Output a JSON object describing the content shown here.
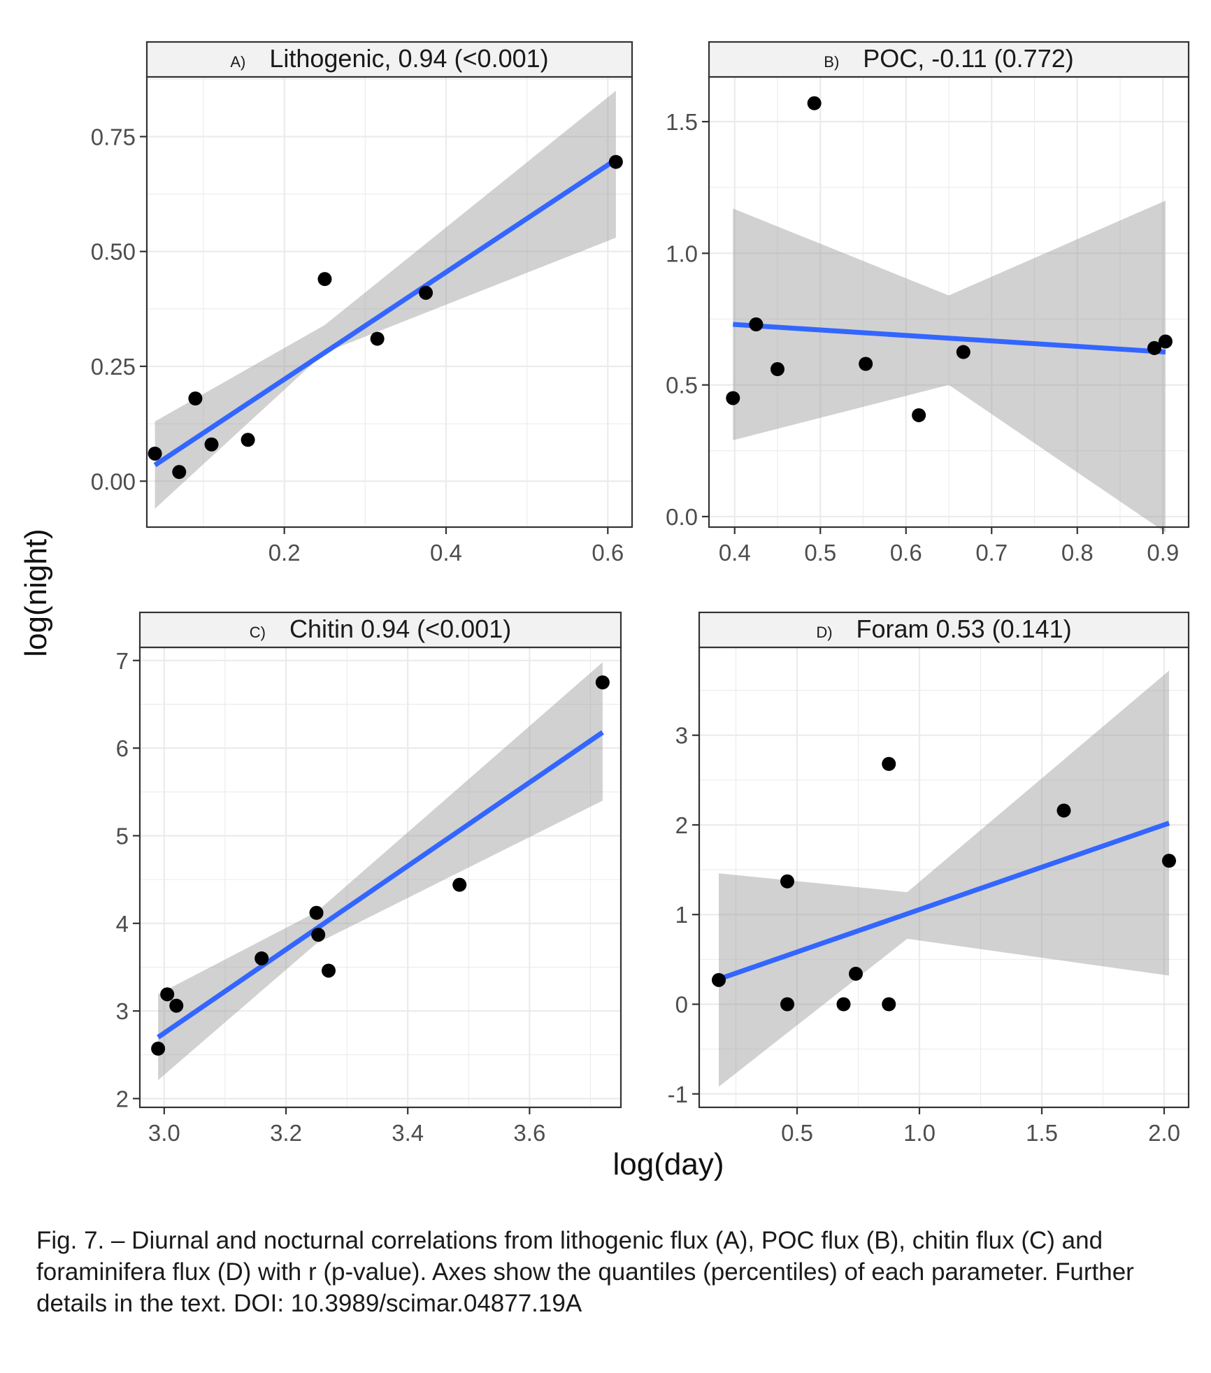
{
  "figure": {
    "xlabel": "log(day)",
    "ylabel": "log(night)",
    "caption": "Fig. 7. – Diurnal and nocturnal correlations from lithogenic flux (A), POC flux (B), chitin flux (C) and foraminifera flux (D) with r (p-value). Axes show the quantiles (percentiles) of each parameter. Further details in the text. DOI: 10.3989/scimar.04877.19A"
  },
  "chart_data": [
    {
      "type": "scatter",
      "panel": "A)",
      "title": "Lithogenic, 0.94 (<0.001)",
      "xlim": [
        0.03,
        0.63
      ],
      "ylim": [
        -0.1,
        0.88
      ],
      "xticks": [
        0.2,
        0.4,
        0.6
      ],
      "xtick_labels": [
        "0.2",
        "0.4",
        "0.6"
      ],
      "yticks": [
        0.0,
        0.25,
        0.5,
        0.75
      ],
      "ytick_labels": [
        "0.00",
        "0.25",
        "0.50",
        "0.75"
      ],
      "grid": true,
      "points": [
        {
          "x": 0.04,
          "y": 0.06
        },
        {
          "x": 0.07,
          "y": 0.02
        },
        {
          "x": 0.09,
          "y": 0.18
        },
        {
          "x": 0.11,
          "y": 0.08
        },
        {
          "x": 0.155,
          "y": 0.09
        },
        {
          "x": 0.25,
          "y": 0.44
        },
        {
          "x": 0.315,
          "y": 0.31
        },
        {
          "x": 0.375,
          "y": 0.41
        },
        {
          "x": 0.61,
          "y": 0.695
        }
      ],
      "fit": {
        "x": [
          0.04,
          0.61
        ],
        "y": [
          0.035,
          0.7
        ]
      },
      "ci": {
        "x": [
          0.04,
          0.25,
          0.61
        ],
        "lower": [
          -0.06,
          0.28,
          0.53
        ],
        "upper": [
          0.13,
          0.34,
          0.85
        ]
      }
    },
    {
      "type": "scatter",
      "panel": "B)",
      "title": "POC, -0.11 (0.772)",
      "xlim": [
        0.37,
        0.93
      ],
      "ylim": [
        -0.04,
        1.67
      ],
      "xticks": [
        0.4,
        0.5,
        0.6,
        0.7,
        0.8,
        0.9
      ],
      "xtick_labels": [
        "0.4",
        "0.5",
        "0.6",
        "0.7",
        "0.8",
        "0.9"
      ],
      "yticks": [
        0.0,
        0.5,
        1.0,
        1.5
      ],
      "ytick_labels": [
        "0.0",
        "0.5",
        "1.0",
        "1.5"
      ],
      "grid": true,
      "points": [
        {
          "x": 0.398,
          "y": 0.45
        },
        {
          "x": 0.425,
          "y": 0.73
        },
        {
          "x": 0.45,
          "y": 0.56
        },
        {
          "x": 0.493,
          "y": 1.57
        },
        {
          "x": 0.553,
          "y": 0.58
        },
        {
          "x": 0.615,
          "y": 0.385
        },
        {
          "x": 0.667,
          "y": 0.625
        },
        {
          "x": 0.89,
          "y": 0.64
        },
        {
          "x": 0.903,
          "y": 0.665
        }
      ],
      "fit": {
        "x": [
          0.398,
          0.903
        ],
        "y": [
          0.73,
          0.625
        ]
      },
      "ci": {
        "x": [
          0.398,
          0.65,
          0.903
        ],
        "lower": [
          0.29,
          0.5,
          -0.06
        ],
        "upper": [
          1.17,
          0.84,
          1.2
        ]
      }
    },
    {
      "type": "scatter",
      "panel": "C)",
      "title": "Chitin 0.94 (<0.001)",
      "xlim": [
        2.96,
        3.75
      ],
      "ylim": [
        1.9,
        7.15
      ],
      "xticks": [
        3.0,
        3.2,
        3.4,
        3.6
      ],
      "xtick_labels": [
        "3.0",
        "3.2",
        "3.4",
        "3.6"
      ],
      "yticks": [
        2,
        3,
        4,
        5,
        6,
        7
      ],
      "ytick_labels": [
        "2",
        "3",
        "4",
        "5",
        "6",
        "7"
      ],
      "grid": true,
      "points": [
        {
          "x": 2.99,
          "y": 2.57
        },
        {
          "x": 3.005,
          "y": 3.19
        },
        {
          "x": 3.02,
          "y": 3.06
        },
        {
          "x": 3.16,
          "y": 3.6
        },
        {
          "x": 3.25,
          "y": 4.12
        },
        {
          "x": 3.253,
          "y": 3.87
        },
        {
          "x": 3.27,
          "y": 3.46
        },
        {
          "x": 3.485,
          "y": 4.44
        },
        {
          "x": 3.72,
          "y": 6.75
        }
      ],
      "fit": {
        "x": [
          2.99,
          3.72
        ],
        "y": [
          2.7,
          6.18
        ]
      },
      "ci": {
        "x": [
          2.99,
          3.25,
          3.72
        ],
        "lower": [
          2.21,
          3.77,
          5.4
        ],
        "upper": [
          3.19,
          4.13,
          6.98
        ]
      }
    },
    {
      "type": "scatter",
      "panel": "D)",
      "title": "Foram 0.53 (0.141)",
      "xlim": [
        0.1,
        2.1
      ],
      "ylim": [
        -1.15,
        3.98
      ],
      "xticks": [
        0.5,
        1.0,
        1.5,
        2.0
      ],
      "xtick_labels": [
        "0.5",
        "1.0",
        "1.5",
        "2.0"
      ],
      "yticks": [
        -1,
        0,
        1,
        2,
        3
      ],
      "ytick_labels": [
        "-1",
        "0",
        "1",
        "2",
        "3"
      ],
      "grid": true,
      "points": [
        {
          "x": 0.18,
          "y": 0.27
        },
        {
          "x": 0.46,
          "y": 1.37
        },
        {
          "x": 0.46,
          "y": 0.0
        },
        {
          "x": 0.69,
          "y": 0.0
        },
        {
          "x": 0.74,
          "y": 0.34
        },
        {
          "x": 0.875,
          "y": 2.68
        },
        {
          "x": 0.875,
          "y": 0.0
        },
        {
          "x": 1.59,
          "y": 2.16
        },
        {
          "x": 2.02,
          "y": 1.6
        }
      ],
      "fit": {
        "x": [
          0.18,
          2.02
        ],
        "y": [
          0.28,
          2.02
        ]
      },
      "ci": {
        "x": [
          0.18,
          0.95,
          2.02
        ],
        "lower": [
          -0.92,
          0.73,
          0.32
        ],
        "upper": [
          1.46,
          1.25,
          3.72
        ]
      }
    }
  ]
}
